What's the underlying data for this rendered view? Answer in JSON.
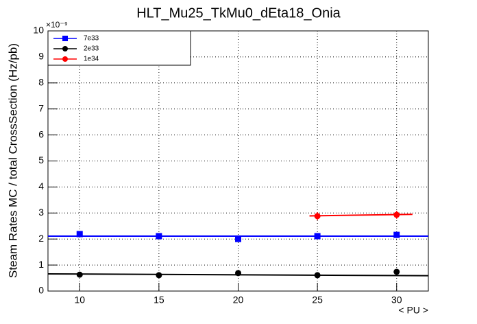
{
  "chart_data": {
    "type": "scatter",
    "title": "HLT_Mu25_TkMu0_dEta18_Onia",
    "x_label": "< PU >",
    "y_label": "Steam Rates MC / total CrossSection (Hz/pb)",
    "y_multiplier": "×10⁻⁹",
    "xlim": [
      8,
      32
    ],
    "xticks": [
      10,
      15,
      20,
      25,
      30
    ],
    "ylim": [
      0,
      10
    ],
    "yticks": [
      0,
      1,
      2,
      3,
      4,
      5,
      6,
      7,
      8,
      9,
      10
    ],
    "grid": true,
    "legend": "top-left",
    "series": [
      {
        "name": "7e33",
        "color": "#0000ff",
        "marker": "square",
        "x": [
          10,
          15,
          20,
          25,
          30
        ],
        "values": [
          2.19,
          2.11,
          2.0,
          2.11,
          2.16
        ],
        "fit": {
          "x": [
            8,
            32
          ],
          "values": [
            2.11,
            2.11
          ]
        }
      },
      {
        "name": "2e33",
        "color": "#000000",
        "marker": "circle",
        "x": [
          10,
          15,
          20,
          25,
          30
        ],
        "values": [
          0.63,
          0.61,
          0.69,
          0.61,
          0.74
        ],
        "fit": {
          "x": [
            8,
            32
          ],
          "values": [
            0.66,
            0.59
          ]
        }
      },
      {
        "name": "1e34",
        "color": "#ff0000",
        "marker": "circle",
        "x": [
          25,
          30
        ],
        "values": [
          2.88,
          2.93
        ],
        "errors": [
          0.15,
          0.15
        ],
        "fit": {
          "x": [
            24.5,
            31
          ],
          "values": [
            2.89,
            2.95
          ]
        }
      }
    ]
  }
}
